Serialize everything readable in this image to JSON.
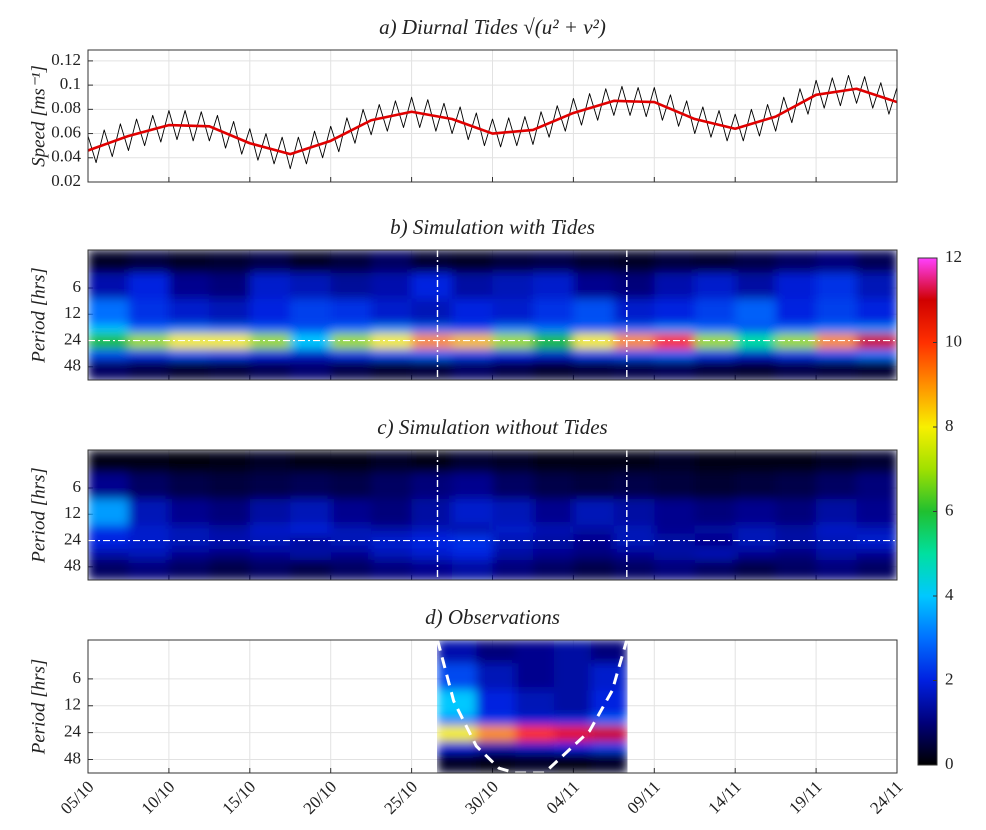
{
  "chart_data": [
    {
      "type": "line",
      "title": "a) Diurnal Tides √(u² + v²)",
      "ylabel": "Speed [ms⁻¹]",
      "xlim": [
        0,
        50
      ],
      "xticks": [
        0,
        5,
        10,
        15,
        20,
        25,
        30,
        35,
        40,
        45,
        50
      ],
      "ylim": [
        0.02,
        0.129
      ],
      "yticks": [
        0.02,
        0.04,
        0.06,
        0.08,
        0.1,
        0.12
      ],
      "grid": true,
      "series": [
        {
          "color": "#000000",
          "x": [
            0,
            0.5,
            1,
            1.5,
            2,
            2.5,
            3,
            3.5,
            4,
            4.5,
            5,
            5.5,
            6,
            6.5,
            7,
            7.5,
            8,
            8.5,
            9,
            9.5,
            10,
            10.5,
            11,
            11.5,
            12,
            12.5,
            13,
            13.5,
            14,
            14.5,
            15,
            15.5,
            16,
            16.5,
            17,
            17.5,
            18,
            18.5,
            19,
            19.5,
            20,
            20.5,
            21,
            21.5,
            22,
            22.5,
            23,
            23.5,
            24,
            24.5,
            25,
            25.5,
            26,
            26.5,
            27,
            27.5,
            28,
            28.5,
            29,
            29.5,
            30,
            30.5,
            31,
            31.5,
            32,
            32.5,
            33,
            33.5,
            34,
            34.5,
            35,
            35.5,
            36,
            36.5,
            37,
            37.5,
            38,
            38.5,
            39,
            39.5,
            40,
            40.5,
            41,
            41.5,
            42,
            42.5,
            43,
            43.5,
            44,
            44.5,
            45,
            45.5,
            46,
            46.5,
            47,
            47.5,
            48,
            48.5,
            49,
            49.5,
            50
          ],
          "values": [
            0.058,
            0.036,
            0.063,
            0.041,
            0.068,
            0.046,
            0.072,
            0.05,
            0.075,
            0.053,
            0.079,
            0.055,
            0.079,
            0.054,
            0.078,
            0.054,
            0.075,
            0.048,
            0.07,
            0.043,
            0.064,
            0.038,
            0.06,
            0.035,
            0.057,
            0.031,
            0.057,
            0.035,
            0.062,
            0.04,
            0.066,
            0.045,
            0.073,
            0.052,
            0.08,
            0.059,
            0.084,
            0.062,
            0.087,
            0.065,
            0.09,
            0.065,
            0.088,
            0.062,
            0.085,
            0.06,
            0.082,
            0.055,
            0.077,
            0.05,
            0.072,
            0.049,
            0.073,
            0.05,
            0.074,
            0.051,
            0.078,
            0.057,
            0.083,
            0.062,
            0.089,
            0.067,
            0.093,
            0.071,
            0.097,
            0.075,
            0.099,
            0.075,
            0.098,
            0.074,
            0.098,
            0.071,
            0.092,
            0.066,
            0.087,
            0.06,
            0.082,
            0.057,
            0.079,
            0.054,
            0.076,
            0.054,
            0.08,
            0.058,
            0.084,
            0.062,
            0.09,
            0.069,
            0.097,
            0.076,
            0.104,
            0.081,
            0.106,
            0.083,
            0.108,
            0.085,
            0.107,
            0.081,
            0.102,
            0.076,
            0.098
          ]
        },
        {
          "color": "#e00000",
          "x": [
            0,
            2.5,
            5,
            7.5,
            10,
            12.5,
            15,
            17.5,
            20,
            22.5,
            25,
            27.5,
            30,
            32.5,
            35,
            37.5,
            40,
            42.5,
            45,
            47.5,
            50
          ],
          "values": [
            0.046,
            0.058,
            0.067,
            0.066,
            0.052,
            0.043,
            0.054,
            0.071,
            0.078,
            0.072,
            0.06,
            0.063,
            0.077,
            0.087,
            0.086,
            0.072,
            0.064,
            0.074,
            0.092,
            0.097,
            0.086
          ]
        }
      ]
    },
    {
      "type": "heatmap",
      "title": "b) Simulation with Tides",
      "ylabel": "Period [hrs]",
      "xlim": [
        0,
        50
      ],
      "xticks": [
        0,
        5,
        10,
        15,
        20,
        25,
        30,
        35,
        40,
        45,
        50
      ],
      "ylim": [
        2.2,
        68
      ],
      "yticks": [
        6,
        12,
        24,
        48
      ],
      "log_y": true,
      "y_reversed": true,
      "grid": true,
      "x_bins": [
        0,
        2.5,
        5,
        7.5,
        10,
        12.5,
        15,
        17.5,
        20,
        22.5,
        25,
        27.5,
        30,
        32.5,
        35,
        37.5,
        40,
        42.5,
        45,
        47.5,
        50
      ],
      "y_bins": [
        2.2,
        4,
        8,
        16,
        20,
        30,
        40,
        68
      ],
      "z": [
        [
          0.3,
          0.5,
          0.3,
          0.4,
          0.6,
          0.3,
          0.5,
          0.8,
          0.4,
          0.3,
          0.5,
          0.6,
          0.4,
          0.3,
          0.5,
          0.4,
          0.6,
          0.8,
          1.0,
          0.7
        ],
        [
          1.5,
          2.0,
          1.2,
          1.0,
          1.8,
          1.6,
          1.3,
          1.5,
          2.0,
          1.4,
          1.6,
          1.8,
          1.2,
          1.0,
          1.5,
          1.8,
          1.4,
          1.9,
          2.2,
          1.6
        ],
        [
          3.0,
          2.2,
          1.8,
          1.6,
          2.0,
          2.4,
          2.2,
          1.8,
          1.6,
          2.0,
          1.8,
          2.2,
          2.6,
          1.8,
          2.0,
          2.4,
          2.8,
          2.0,
          2.4,
          2.0
        ],
        [
          4.0,
          3.0,
          3.2,
          3.0,
          2.8,
          2.6,
          3.0,
          3.4,
          3.0,
          2.6,
          3.2,
          3.0,
          2.8,
          3.0,
          3.4,
          3.0,
          2.6,
          3.0,
          3.2,
          3.4
        ],
        [
          6.0,
          7.0,
          8.0,
          8.0,
          7.0,
          4.0,
          7.0,
          8.0,
          9.0,
          8.5,
          7.0,
          6.0,
          8.0,
          9.0,
          10.0,
          7.0,
          5.0,
          7.0,
          9.0,
          11.0
        ],
        [
          2.5,
          2.2,
          2.6,
          2.4,
          2.0,
          1.8,
          2.2,
          2.6,
          2.8,
          2.4,
          2.0,
          1.8,
          2.4,
          2.6,
          2.8,
          2.2,
          1.8,
          2.2,
          2.6,
          3.0
        ],
        [
          0.8,
          0.6,
          0.4,
          0.5,
          0.7,
          0.9,
          0.6,
          0.4,
          0.5,
          0.8,
          0.6,
          0.4,
          0.5,
          0.6,
          0.7,
          0.5,
          0.4,
          0.6,
          0.5,
          0.4
        ]
      ],
      "vlines": [
        21.6,
        33.3
      ],
      "hline": 24,
      "colorbar": {
        "clim": [
          0,
          12
        ],
        "ticks": [
          0,
          2,
          4,
          6,
          8,
          10,
          12
        ],
        "colormap": [
          "#000000",
          "#00007a",
          "#0020e0",
          "#0070ff",
          "#00c8ff",
          "#00e0a0",
          "#20c030",
          "#a0e000",
          "#f8f000",
          "#ff9000",
          "#ff3000",
          "#d00000",
          "#ff40ff"
        ]
      }
    },
    {
      "type": "heatmap",
      "title": "c) Simulation without Tides",
      "ylabel": "Period [hrs]",
      "xlim": [
        0,
        50
      ],
      "xticks": [
        0,
        5,
        10,
        15,
        20,
        25,
        30,
        35,
        40,
        45,
        50
      ],
      "ylim": [
        2.2,
        68
      ],
      "yticks": [
        6,
        12,
        24,
        48
      ],
      "log_y": true,
      "y_reversed": true,
      "grid": true,
      "x_bins": [
        0,
        2.5,
        5,
        7.5,
        10,
        12.5,
        15,
        17.5,
        20,
        22.5,
        25,
        27.5,
        30,
        32.5,
        35,
        37.5,
        40,
        42.5,
        45,
        47.5,
        50
      ],
      "y_bins": [
        2.2,
        4,
        8,
        16,
        20,
        30,
        40,
        68
      ],
      "z": [
        [
          0.2,
          0.2,
          0.1,
          0.2,
          0.3,
          0.2,
          0.2,
          0.3,
          0.2,
          0.4,
          0.3,
          0.2,
          0.2,
          0.2,
          0.3,
          0.2,
          0.2,
          0.2,
          0.3,
          0.4
        ],
        [
          1.2,
          0.8,
          0.6,
          0.5,
          0.6,
          0.7,
          0.6,
          0.8,
          1.0,
          1.2,
          0.8,
          0.6,
          0.5,
          0.6,
          0.5,
          0.4,
          0.5,
          0.6,
          0.8,
          1.0
        ],
        [
          3.5,
          1.6,
          1.2,
          1.0,
          1.4,
          1.6,
          1.2,
          1.0,
          1.4,
          1.8,
          1.6,
          1.2,
          1.6,
          1.4,
          1.2,
          1.0,
          1.2,
          1.0,
          1.4,
          1.2
        ],
        [
          2.2,
          1.8,
          1.6,
          1.4,
          1.8,
          2.0,
          1.6,
          1.4,
          1.6,
          1.4,
          1.8,
          1.6,
          1.4,
          1.6,
          1.2,
          1.4,
          1.6,
          1.4,
          1.8,
          1.6
        ],
        [
          2.0,
          1.8,
          1.6,
          1.5,
          1.6,
          1.4,
          1.6,
          1.8,
          2.0,
          2.2,
          1.6,
          1.4,
          1.2,
          1.6,
          1.4,
          1.2,
          1.6,
          1.4,
          1.6,
          1.8
        ],
        [
          1.4,
          1.6,
          1.2,
          1.0,
          1.2,
          1.4,
          1.2,
          1.6,
          1.8,
          2.0,
          1.4,
          1.2,
          1.0,
          1.2,
          1.4,
          1.6,
          1.2,
          1.0,
          1.4,
          1.2
        ],
        [
          0.8,
          1.0,
          0.8,
          0.6,
          0.8,
          0.6,
          0.8,
          1.0,
          1.2,
          1.4,
          1.0,
          0.8,
          0.6,
          0.8,
          1.0,
          0.8,
          0.6,
          0.8,
          1.0,
          0.8
        ]
      ],
      "vlines": [
        21.6,
        33.3
      ],
      "hline": 24
    },
    {
      "type": "heatmap",
      "title": "d) Observations",
      "ylabel": "Period [hrs]",
      "xlim": [
        0,
        50
      ],
      "xticks": [
        {
          "value": 0,
          "label": "05/10"
        },
        {
          "value": 5,
          "label": "10/10"
        },
        {
          "value": 10,
          "label": "15/10"
        },
        {
          "value": 15,
          "label": "20/10"
        },
        {
          "value": 20,
          "label": "25/10"
        },
        {
          "value": 25,
          "label": "30/10"
        },
        {
          "value": 30,
          "label": "04/11"
        },
        {
          "value": 35,
          "label": "09/11"
        },
        {
          "value": 40,
          "label": "14/11"
        },
        {
          "value": 45,
          "label": "19/11"
        },
        {
          "value": 50,
          "label": "24/11"
        }
      ],
      "ylim": [
        2.2,
        68
      ],
      "yticks": [
        6,
        12,
        24,
        48
      ],
      "log_y": true,
      "y_reversed": true,
      "grid": true,
      "x_bins": [
        21.6,
        24,
        26.4,
        28.8,
        31.1,
        33.3
      ],
      "y_bins": [
        2.2,
        4,
        8,
        16,
        20,
        30,
        40,
        68
      ],
      "z": [
        [
          1.5,
          1.0,
          1.2,
          1.4,
          1.0
        ],
        [
          2.5,
          1.6,
          1.2,
          1.4,
          1.8
        ],
        [
          4.0,
          2.0,
          1.6,
          1.4,
          2.0
        ],
        [
          3.0,
          2.4,
          2.0,
          2.2,
          3.0
        ],
        [
          8.0,
          9.0,
          10.0,
          10.5,
          11.0
        ],
        [
          2.0,
          1.6,
          1.8,
          2.0,
          2.4
        ],
        [
          0.3,
          0.2,
          0.3,
          0.2,
          0.3
        ]
      ],
      "coi": {
        "x": [
          21.6,
          22.6,
          24,
          25.4,
          26.4,
          28.2,
          31,
          32.4,
          33.3
        ],
        "y": [
          2.2,
          10.6,
          34,
          60,
          68,
          68,
          23,
          8.1,
          2.2
        ]
      }
    }
  ]
}
